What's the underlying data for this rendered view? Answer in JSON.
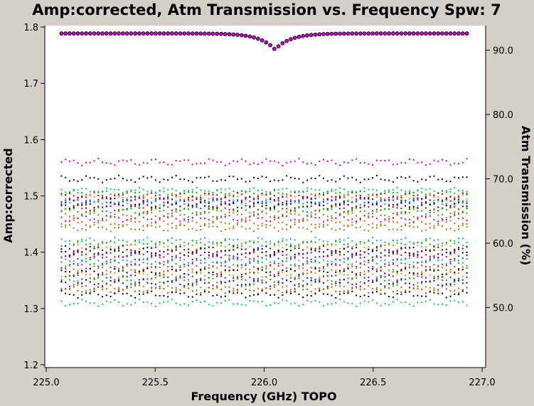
{
  "chart_data": {
    "type": "scatter",
    "title": "Amp:corrected, Atm Transmission vs. Frequency Spw: 7",
    "xlabel": "Frequency (GHz) TOPO",
    "ylabel": "Amp:corrected",
    "y2label": "Atm Transmission (%)",
    "xlim": [
      225.0,
      227.0
    ],
    "ylim": [
      1.2,
      1.8
    ],
    "y2lim": [
      41.1,
      93.6
    ],
    "xticks": [
      "225.0",
      "225.5",
      "226.0",
      "226.5",
      "227.0"
    ],
    "yticks": [
      "1.2",
      "1.3",
      "1.4",
      "1.5",
      "1.6",
      "1.7",
      "1.8"
    ],
    "y2ticks": [
      "50.0",
      "60.0",
      "70.0",
      "80.0",
      "90.0"
    ],
    "grid": false,
    "legend": "none",
    "x_range": [
      225.07,
      226.93
    ],
    "n_points": 100,
    "atm_transmission": {
      "color": "#cc00cc",
      "baseline_pct": 92.6,
      "dip_center_ghz": 226.05,
      "dip_min_pct": 90.1
    },
    "series": [
      {
        "color": "#cc00cc",
        "level": 1.56,
        "amp": 0.004
      },
      {
        "color": "#000000",
        "level": 1.53,
        "amp": 0.004
      },
      {
        "color": "#00bbbb",
        "level": 1.51,
        "amp": 0.003
      },
      {
        "color": "#00bb00",
        "level": 1.505,
        "amp": 0.003
      },
      {
        "color": "#cc0000",
        "level": 1.5,
        "amp": 0.004
      },
      {
        "color": "#ff8800",
        "level": 1.497,
        "amp": 0.004
      },
      {
        "color": "#0000ff",
        "level": 1.493,
        "amp": 0.004
      },
      {
        "color": "#8800cc",
        "level": 1.49,
        "amp": 0.004
      },
      {
        "color": "#00bbbb",
        "level": 1.487,
        "amp": 0.004
      },
      {
        "color": "#000000",
        "level": 1.483,
        "amp": 0.004
      },
      {
        "color": "#cc0000",
        "level": 1.478,
        "amp": 0.004
      },
      {
        "color": "#00bb00",
        "level": 1.473,
        "amp": 0.004
      },
      {
        "color": "#888800",
        "level": 1.466,
        "amp": 0.004
      },
      {
        "color": "#cc00cc",
        "level": 1.46,
        "amp": 0.004
      },
      {
        "color": "#cc6600",
        "level": 1.452,
        "amp": 0.004
      },
      {
        "color": "#888800",
        "level": 1.443,
        "amp": 0.004
      },
      {
        "color": "#00bbbb",
        "level": 1.42,
        "amp": 0.004
      },
      {
        "color": "#00bb00",
        "level": 1.415,
        "amp": 0.004
      },
      {
        "color": "#ff8800",
        "level": 1.41,
        "amp": 0.004
      },
      {
        "color": "#0000ff",
        "level": 1.405,
        "amp": 0.004
      },
      {
        "color": "#000000",
        "level": 1.4,
        "amp": 0.004
      },
      {
        "color": "#cc0000",
        "level": 1.395,
        "amp": 0.004
      },
      {
        "color": "#8800cc",
        "level": 1.39,
        "amp": 0.004
      },
      {
        "color": "#00bbbb",
        "level": 1.385,
        "amp": 0.004
      },
      {
        "color": "#00bb00",
        "level": 1.38,
        "amp": 0.004
      },
      {
        "color": "#cc00cc",
        "level": 1.375,
        "amp": 0.004
      },
      {
        "color": "#888800",
        "level": 1.37,
        "amp": 0.004
      },
      {
        "color": "#000000",
        "level": 1.365,
        "amp": 0.004
      },
      {
        "color": "#ff8800",
        "level": 1.36,
        "amp": 0.004
      },
      {
        "color": "#8800cc",
        "level": 1.355,
        "amp": 0.004
      },
      {
        "color": "#00bb00",
        "level": 1.35,
        "amp": 0.004
      },
      {
        "color": "#0000ff",
        "level": 1.345,
        "amp": 0.004
      },
      {
        "color": "#cc6600",
        "level": 1.338,
        "amp": 0.004
      },
      {
        "color": "#886600",
        "level": 1.333,
        "amp": 0.004
      },
      {
        "color": "#000000",
        "level": 1.325,
        "amp": 0.004
      },
      {
        "color": "#00cc66",
        "level": 1.31,
        "amp": 0.004
      }
    ]
  }
}
